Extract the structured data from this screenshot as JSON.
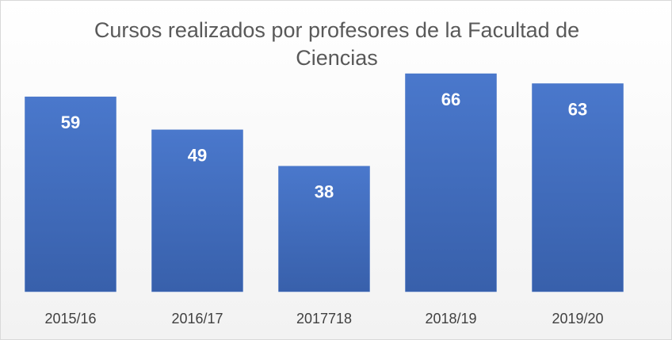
{
  "chart_data": {
    "type": "bar",
    "title": "Cursos realizados por profesores de la Facultad de Ciencias",
    "categories": [
      "2015/16",
      "2016/17",
      "2017718",
      "2018/19",
      "2019/20"
    ],
    "values": [
      59,
      49,
      38,
      66,
      63
    ],
    "color": "#4472c4"
  }
}
